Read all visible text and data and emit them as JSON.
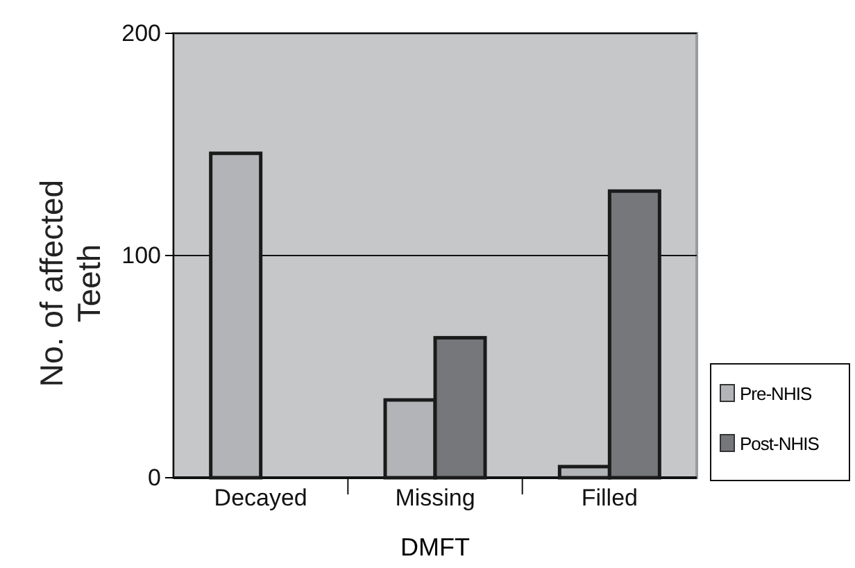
{
  "chart_data": {
    "type": "bar",
    "xlabel": "DMFT",
    "ylabel": "No. of affected Teeth",
    "categories": [
      "Decayed",
      "Missing",
      "Filled"
    ],
    "series": [
      {
        "name": "Pre-NHIS",
        "color": "#b3b4b8",
        "values": [
          146,
          35,
          5
        ]
      },
      {
        "name": "Post-NHIS",
        "color": "#76777b",
        "values": [
          0,
          63,
          129
        ]
      }
    ],
    "ylim": [
      0,
      200
    ],
    "yticks": [
      0,
      100,
      200
    ],
    "grid": "y",
    "legend": "right"
  }
}
